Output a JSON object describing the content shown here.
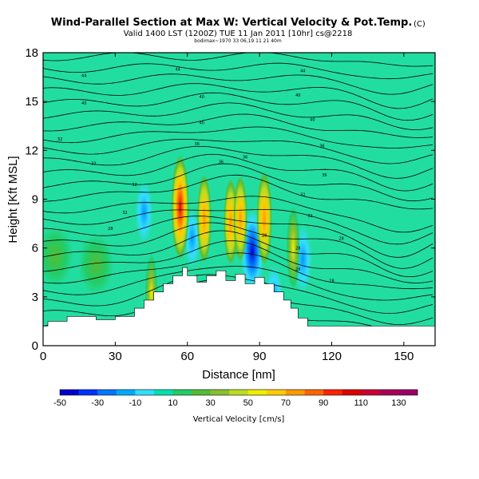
{
  "chart_data": {
    "type": "heatmap",
    "title": "Wind-Parallel Section at Max W: Vertical Velocity & Pot.Temp.",
    "title_suffix": "(C)",
    "subtitle": "Valid 1400 LST (1200Z) TUE 11 Jan 2011 [10hr] cs@2218",
    "info_line": "bodimax~1970 33 06,19 11 21 40m",
    "xlabel": "Distance [nm]",
    "ylabel": "Height [Kft MSL]",
    "xlim": [
      0,
      163
    ],
    "ylim": [
      0,
      18
    ],
    "xticks": [
      0,
      30,
      60,
      90,
      120,
      150
    ],
    "yticks": [
      0,
      3,
      6,
      9,
      12,
      15,
      18
    ],
    "colorbar": {
      "label": "Vertical Velocity [cm/s]",
      "tick_labels": [
        "-50",
        "-30",
        "-10",
        "10",
        "30",
        "50",
        "70",
        "90",
        "110",
        "130"
      ],
      "range": [
        -50,
        140
      ],
      "colors": [
        "#0000cc",
        "#0033ff",
        "#0077ff",
        "#00aaff",
        "#33ddff",
        "#00e0b0",
        "#22cc66",
        "#55bb33",
        "#88c030",
        "#bbdd22",
        "#eeee00",
        "#ffcc00",
        "#ff9900",
        "#ff6600",
        "#ff2200",
        "#dd0000",
        "#cc0033",
        "#aa0055",
        "#990066"
      ]
    },
    "terrain": [
      [
        0,
        1.2
      ],
      [
        2,
        1.2
      ],
      [
        2,
        1.5
      ],
      [
        10,
        1.5
      ],
      [
        10,
        1.8
      ],
      [
        22,
        1.8
      ],
      [
        22,
        1.6
      ],
      [
        30,
        1.6
      ],
      [
        30,
        1.8
      ],
      [
        38,
        1.8
      ],
      [
        38,
        2.3
      ],
      [
        42,
        2.3
      ],
      [
        42,
        2.8
      ],
      [
        46,
        2.8
      ],
      [
        46,
        3.3
      ],
      [
        50,
        3.3
      ],
      [
        50,
        3.8
      ],
      [
        54,
        3.8
      ],
      [
        54,
        4.3
      ],
      [
        58,
        4.3
      ],
      [
        58,
        4.8
      ],
      [
        60,
        4.8
      ],
      [
        60,
        4.3
      ],
      [
        64,
        4.3
      ],
      [
        64,
        3.9
      ],
      [
        68,
        3.9
      ],
      [
        68,
        4.3
      ],
      [
        72,
        4.3
      ],
      [
        72,
        4.6
      ],
      [
        76,
        4.6
      ],
      [
        76,
        4.0
      ],
      [
        80,
        4.0
      ],
      [
        80,
        4.4
      ],
      [
        84,
        4.4
      ],
      [
        84,
        3.8
      ],
      [
        88,
        3.8
      ],
      [
        88,
        4.2
      ],
      [
        92,
        4.2
      ],
      [
        92,
        3.8
      ],
      [
        96,
        3.8
      ],
      [
        96,
        3.3
      ],
      [
        100,
        3.3
      ],
      [
        100,
        2.8
      ],
      [
        103,
        2.8
      ],
      [
        103,
        2.3
      ],
      [
        106,
        2.3
      ],
      [
        106,
        1.7
      ],
      [
        110,
        1.7
      ],
      [
        110,
        1.2
      ],
      [
        163,
        1.2
      ]
    ],
    "updrafts": [
      {
        "x": 57,
        "z": 8.5,
        "w": 140
      },
      {
        "x": 67,
        "z": 7.8,
        "w": 70
      },
      {
        "x": 78,
        "z": 7.6,
        "w": 60
      },
      {
        "x": 82,
        "z": 7.8,
        "w": 60
      },
      {
        "x": 92,
        "z": 7.8,
        "w": 90
      },
      {
        "x": 104,
        "z": 6.0,
        "w": 50
      },
      {
        "x": 45,
        "z": 3.2,
        "w": 30
      },
      {
        "x": 5,
        "z": 5.5,
        "w": 20
      },
      {
        "x": 22,
        "z": 5.0,
        "w": 12
      }
    ],
    "downdrafts": [
      {
        "x": 42,
        "z": 8.2,
        "w": -20
      },
      {
        "x": 87,
        "z": 5.8,
        "w": -45
      },
      {
        "x": 108,
        "z": 5.3,
        "w": -25
      },
      {
        "x": 62,
        "z": 6.6,
        "w": -15
      },
      {
        "x": 96,
        "z": 3.0,
        "w": -20
      }
    ],
    "contour_labels": [
      {
        "x": 17,
        "z": 16.5,
        "text": "44"
      },
      {
        "x": 56,
        "z": 16.9,
        "text": "44"
      },
      {
        "x": 108,
        "z": 16.8,
        "text": "44"
      },
      {
        "x": 17,
        "z": 14.8,
        "text": "40"
      },
      {
        "x": 66,
        "z": 15.2,
        "text": "40"
      },
      {
        "x": 106,
        "z": 15.3,
        "text": "40"
      },
      {
        "x": 66,
        "z": 13.6,
        "text": "40"
      },
      {
        "x": 112,
        "z": 13.8,
        "text": "40"
      },
      {
        "x": 7,
        "z": 12.6,
        "text": "32"
      },
      {
        "x": 64,
        "z": 12.3,
        "text": "36"
      },
      {
        "x": 116,
        "z": 12.2,
        "text": "36"
      },
      {
        "x": 21,
        "z": 11.1,
        "text": "32"
      },
      {
        "x": 74,
        "z": 11.2,
        "text": "36"
      },
      {
        "x": 117,
        "z": 10.4,
        "text": "36"
      },
      {
        "x": 38,
        "z": 9.8,
        "text": "32"
      },
      {
        "x": 84,
        "z": 11.5,
        "text": "36"
      },
      {
        "x": 108,
        "z": 9.2,
        "text": "32"
      },
      {
        "x": 34,
        "z": 8.1,
        "text": "32"
      },
      {
        "x": 111,
        "z": 7.9,
        "text": "32"
      },
      {
        "x": 28,
        "z": 7.1,
        "text": "28"
      },
      {
        "x": 92,
        "z": 6.7,
        "text": "28"
      },
      {
        "x": 106,
        "z": 5.9,
        "text": "28"
      },
      {
        "x": 124,
        "z": 6.5,
        "text": "28"
      },
      {
        "x": 106,
        "z": 4.6,
        "text": "28"
      },
      {
        "x": 120,
        "z": 3.9,
        "text": "28"
      }
    ]
  },
  "colors": {
    "background_field": "#22dda0",
    "terrain": "#ffffff",
    "contour": "#000000"
  }
}
